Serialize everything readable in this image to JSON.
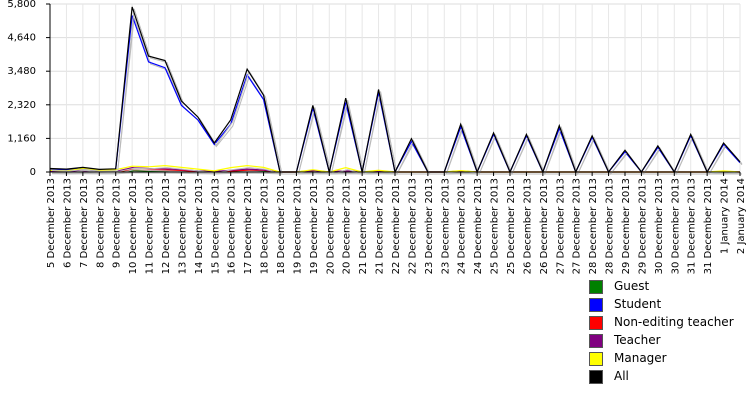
{
  "chart_data": {
    "type": "line",
    "title": "",
    "xlabel": "",
    "ylabel": "",
    "ylim": [
      0,
      5800
    ],
    "y_ticks": [
      "0",
      "1,160",
      "2,320",
      "3,480",
      "4,640",
      "5,800"
    ],
    "grid": true,
    "legend_position": "bottom-right",
    "categories": [
      "5 December 2013",
      "6 December 2013",
      "7 December 2013",
      "8 December 2013",
      "9 December 2013",
      "10 December 2013",
      "11 December 2013",
      "12 December 2013",
      "13 December 2013",
      "14 December 2013",
      "15 December 2013",
      "16 December 2013",
      "17 December 2013",
      "18 December 2013",
      "18 December 2013",
      "19 December 2013",
      "19 December 2013",
      "20 December 2013",
      "20 December 2013",
      "21 December 2013",
      "21 December 2013",
      "22 December 2013",
      "22 December 2013",
      "23 December 2013",
      "23 December 2013",
      "24 December 2013",
      "24 December 2013",
      "25 December 2013",
      "25 December 2013",
      "26 December 2013",
      "26 December 2013",
      "27 December 2013",
      "27 December 2013",
      "28 December 2013",
      "28 December 2013",
      "29 December 2013",
      "29 December 2013",
      "30 December 2013",
      "30 December 2013",
      "31 December 2013",
      "31 December 2013",
      "1 January 2014",
      "2 January 2014"
    ],
    "series": [
      {
        "name": "Guest",
        "color": "#008000",
        "values": [
          10,
          5,
          10,
          5,
          10,
          40,
          30,
          30,
          20,
          10,
          5,
          20,
          30,
          20,
          0,
          0,
          10,
          0,
          10,
          0,
          5,
          0,
          0,
          0,
          0,
          10,
          0,
          0,
          0,
          0,
          0,
          0,
          0,
          0,
          0,
          0,
          0,
          0,
          0,
          0,
          0,
          5,
          0
        ]
      },
      {
        "name": "Student",
        "color": "#0000ff",
        "values": [
          100,
          80,
          120,
          70,
          90,
          5400,
          3800,
          3600,
          2300,
          1800,
          950,
          1650,
          3350,
          2500,
          0,
          0,
          2200,
          0,
          2400,
          0,
          2750,
          0,
          1050,
          0,
          0,
          1550,
          0,
          1300,
          0,
          1250,
          0,
          1500,
          0,
          1200,
          0,
          700,
          0,
          850,
          0,
          1250,
          0,
          950,
          320
        ]
      },
      {
        "name": "Non-editing teacher",
        "color": "#ff0000",
        "values": [
          20,
          10,
          20,
          10,
          10,
          80,
          60,
          70,
          50,
          20,
          10,
          40,
          60,
          60,
          0,
          0,
          50,
          0,
          40,
          0,
          20,
          0,
          0,
          0,
          0,
          30,
          0,
          0,
          0,
          0,
          0,
          0,
          0,
          0,
          0,
          0,
          0,
          0,
          0,
          0,
          0,
          10,
          0
        ]
      },
      {
        "name": "Teacher",
        "color": "#800080",
        "values": [
          30,
          20,
          40,
          20,
          20,
          150,
          120,
          110,
          80,
          40,
          20,
          60,
          100,
          70,
          0,
          0,
          50,
          0,
          40,
          0,
          20,
          0,
          0,
          0,
          0,
          30,
          0,
          0,
          0,
          0,
          0,
          0,
          0,
          0,
          0,
          0,
          0,
          0,
          0,
          0,
          0,
          20,
          0
        ]
      },
      {
        "name": "Manager",
        "color": "#ffff00",
        "values": [
          60,
          40,
          120,
          60,
          80,
          200,
          180,
          220,
          160,
          100,
          40,
          150,
          220,
          160,
          0,
          0,
          80,
          0,
          150,
          0,
          60,
          0,
          0,
          0,
          0,
          50,
          0,
          0,
          0,
          0,
          0,
          0,
          0,
          0,
          0,
          0,
          0,
          0,
          0,
          0,
          0,
          40,
          0
        ]
      },
      {
        "name": "All",
        "color": "#000000",
        "values": [
          120,
          100,
          160,
          90,
          110,
          5700,
          4000,
          3850,
          2450,
          1900,
          1000,
          1800,
          3550,
          2650,
          0,
          0,
          2300,
          0,
          2550,
          0,
          2850,
          0,
          1150,
          0,
          0,
          1650,
          0,
          1350,
          0,
          1300,
          0,
          1600,
          0,
          1250,
          0,
          750,
          0,
          900,
          0,
          1300,
          0,
          1000,
          350
        ]
      }
    ]
  }
}
